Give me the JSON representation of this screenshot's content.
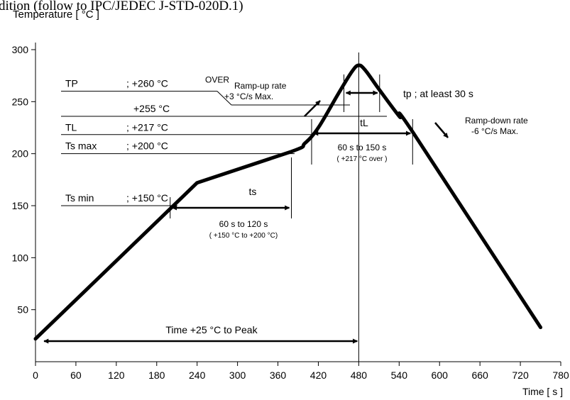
{
  "header_text": "dition (follow to IPC/JEDEC J-STD-020D.1)",
  "chart_data": {
    "type": "line",
    "title": "",
    "ylabel": "Temperature [ °C ]",
    "xlabel": "Time [ s ]",
    "xlim": [
      0,
      780
    ],
    "ylim": [
      0,
      310
    ],
    "xticks": [
      0,
      60,
      120,
      180,
      240,
      300,
      360,
      420,
      480,
      540,
      600,
      660,
      720,
      780
    ],
    "yticks": [
      50,
      100,
      150,
      200,
      250,
      300
    ],
    "grid": false,
    "series": [
      {
        "values": [
          [
            0,
            22
          ],
          [
            240,
            172
          ],
          [
            380,
            202
          ],
          [
            400,
            210
          ],
          [
            420,
            225
          ],
          [
            450,
            258
          ],
          [
            470,
            279
          ],
          [
            480,
            285
          ],
          [
            490,
            280
          ],
          [
            510,
            262
          ],
          [
            540,
            236
          ],
          [
            560,
            221
          ],
          [
            750,
            33
          ]
        ]
      }
    ],
    "reference_lines": [
      {
        "label": "TP",
        "value_text": "; +260 °C",
        "note": "OVER",
        "y": 260
      },
      {
        "label": "",
        "value_text": "+255 °C",
        "y": 255
      },
      {
        "label": "TL",
        "value_text": "; +217 °C",
        "y": 217
      },
      {
        "label": "Ts max",
        "value_text": "; +200 °C",
        "y": 200
      },
      {
        "label": "Ts min",
        "value_text": "; +150 °C",
        "y": 150
      }
    ],
    "intervals": [
      {
        "label": "ts",
        "x_start": 200,
        "x_end": 380,
        "y": 150,
        "text": "60 s  to  120 s",
        "subtext": "( +150 °C to +200 °C)"
      },
      {
        "label": "tL",
        "x_start": 410,
        "x_end": 560,
        "y": 220,
        "text": "60 s  to  150 s",
        "subtext": "( +217 °C over )"
      },
      {
        "label": "tp ; at least 30 s",
        "x_start": 455,
        "x_end": 510,
        "y": 270
      },
      {
        "label": "Time +25 °C to Peak",
        "x_start": 0,
        "x_end": 480,
        "y": 20
      }
    ],
    "annotations": [
      {
        "line1": "Ramp-up rate",
        "line2": "+3 °C/s Max."
      },
      {
        "line1": "Ramp-down rate",
        "line2": "-6 °C/s Max."
      }
    ]
  }
}
